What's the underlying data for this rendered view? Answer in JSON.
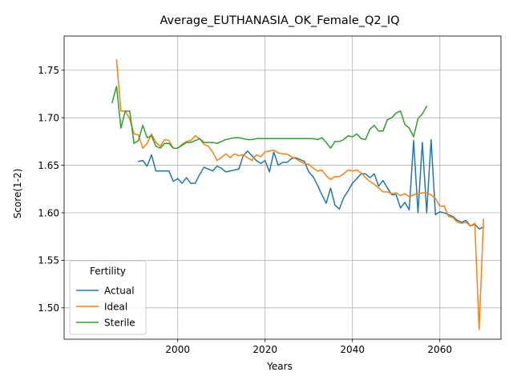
{
  "chart_data": {
    "type": "line",
    "title": "Average_EUTHANASIA_OK_Female_Q2_IQ",
    "xlabel": "Years",
    "ylabel": "Score(1-2)",
    "xlim": [
      2074,
      2174
    ],
    "ylim": [
      1.467,
      1.786
    ],
    "x_axis_unit": "years",
    "x_ticks": [
      2000,
      2020,
      2040,
      2060
    ],
    "y_ticks": [
      1.5,
      1.55,
      1.6,
      1.65,
      1.7,
      1.75
    ],
    "x_tick_labels": [
      "2000",
      "2020",
      "2040",
      "2060"
    ],
    "y_tick_labels": [
      "1.50",
      "1.55",
      "1.60",
      "1.65",
      "1.70",
      "1.75"
    ],
    "grid": true,
    "legend": {
      "title": "Fertility",
      "placement": "lower-left"
    },
    "series": [
      {
        "name": "Actual",
        "color": "#1f77b4",
        "x": [
          1991,
          1992,
          1993,
          1994,
          1995,
          1996,
          1997,
          1998,
          1999,
          2000,
          2001,
          2002,
          2003,
          2004,
          2005,
          2006,
          2007,
          2008,
          2009,
          2010,
          2011,
          2012,
          2013,
          2014,
          2015,
          2016,
          2017,
          2018,
          2019,
          2020,
          2021,
          2022,
          2023,
          2024,
          2025,
          2026,
          2027,
          2028,
          2029,
          2030,
          2031,
          2032,
          2033,
          2034,
          2035,
          2036,
          2037,
          2038,
          2039,
          2040,
          2041,
          2042,
          2043,
          2044,
          2045,
          2046,
          2047,
          2048,
          2049,
          2050,
          2051,
          2052,
          2053,
          2054,
          2055,
          2056,
          2057,
          2058,
          2059,
          2060,
          2061,
          2062,
          2063,
          2064,
          2065,
          2066,
          2067,
          2068,
          2069,
          2070
        ],
        "y": [
          1.654,
          1.655,
          1.649,
          1.661,
          1.644,
          1.644,
          1.644,
          1.644,
          1.633,
          1.636,
          1.631,
          1.637,
          1.631,
          1.631,
          1.64,
          1.648,
          1.646,
          1.644,
          1.649,
          1.647,
          1.643,
          1.644,
          1.645,
          1.646,
          1.66,
          1.665,
          1.66,
          1.655,
          1.652,
          1.655,
          1.643,
          1.664,
          1.65,
          1.653,
          1.653,
          1.657,
          1.658,
          1.656,
          1.654,
          1.643,
          1.638,
          1.629,
          1.619,
          1.61,
          1.626,
          1.608,
          1.604,
          1.616,
          1.623,
          1.631,
          1.636,
          1.641,
          1.641,
          1.637,
          1.641,
          1.628,
          1.634,
          1.626,
          1.619,
          1.619,
          1.605,
          1.611,
          1.603,
          1.676,
          1.6,
          1.674,
          1.6,
          1.677,
          1.598,
          1.601,
          1.6,
          1.598,
          1.596,
          1.592,
          1.59,
          1.592,
          1.586,
          1.588,
          1.583,
          1.585
        ]
      },
      {
        "name": "Ideal",
        "color": "#ff7f0e",
        "x": [
          1986,
          1987,
          1988,
          1989,
          1990,
          1991,
          1992,
          1993,
          1994,
          1995,
          1996,
          1997,
          1998,
          1999,
          2000,
          2001,
          2002,
          2003,
          2004,
          2005,
          2006,
          2007,
          2008,
          2009,
          2010,
          2011,
          2012,
          2013,
          2014,
          2015,
          2016,
          2017,
          2018,
          2019,
          2020,
          2021,
          2022,
          2023,
          2024,
          2025,
          2026,
          2027,
          2028,
          2029,
          2030,
          2031,
          2032,
          2033,
          2034,
          2035,
          2036,
          2037,
          2038,
          2039,
          2040,
          2041,
          2042,
          2043,
          2044,
          2045,
          2046,
          2047,
          2048,
          2049,
          2050,
          2051,
          2052,
          2053,
          2054,
          2055,
          2056,
          2057,
          2058,
          2059,
          2060,
          2061,
          2062,
          2063,
          2064,
          2065,
          2066,
          2067,
          2068,
          2069,
          2070
        ],
        "y": [
          1.761,
          1.707,
          1.707,
          1.699,
          1.683,
          1.682,
          1.668,
          1.673,
          1.683,
          1.674,
          1.67,
          1.677,
          1.676,
          1.668,
          1.668,
          1.672,
          1.675,
          1.676,
          1.681,
          1.678,
          1.672,
          1.67,
          1.664,
          1.655,
          1.658,
          1.662,
          1.658,
          1.662,
          1.66,
          1.661,
          1.658,
          1.655,
          1.661,
          1.659,
          1.664,
          1.665,
          1.666,
          1.663,
          1.662,
          1.662,
          1.659,
          1.657,
          1.654,
          1.652,
          1.651,
          1.647,
          1.644,
          1.645,
          1.639,
          1.635,
          1.638,
          1.638,
          1.641,
          1.645,
          1.644,
          1.645,
          1.642,
          1.637,
          1.633,
          1.63,
          1.626,
          1.622,
          1.622,
          1.62,
          1.621,
          1.618,
          1.62,
          1.617,
          1.619,
          1.62,
          1.621,
          1.621,
          1.619,
          1.615,
          1.607,
          1.607,
          1.596,
          1.595,
          1.59,
          1.589,
          1.59,
          1.586,
          1.589,
          1.477,
          1.593
        ]
      },
      {
        "name": "Sterile",
        "color": "#2ca02c",
        "x": [
          1985,
          1986,
          1987,
          1988,
          1989,
          1990,
          1991,
          1992,
          1993,
          1994,
          1995,
          1996,
          1997,
          1998,
          1999,
          2000,
          2001,
          2002,
          2003,
          2004,
          2005,
          2006,
          2007,
          2008,
          2009,
          2010,
          2011,
          2012,
          2013,
          2014,
          2015,
          2016,
          2017,
          2018,
          2019,
          2020,
          2021,
          2022,
          2023,
          2024,
          2025,
          2026,
          2027,
          2028,
          2029,
          2030,
          2031,
          2032,
          2033,
          2034,
          2035,
          2036,
          2037,
          2038,
          2039,
          2040,
          2041,
          2042,
          2043,
          2044,
          2045,
          2046,
          2047,
          2048,
          2049,
          2050,
          2051,
          2052,
          2053,
          2054,
          2055,
          2056,
          2057
        ],
        "y": [
          1.716,
          1.733,
          1.689,
          1.707,
          1.707,
          1.673,
          1.676,
          1.692,
          1.679,
          1.681,
          1.67,
          1.668,
          1.673,
          1.673,
          1.668,
          1.668,
          1.671,
          1.674,
          1.674,
          1.676,
          1.678,
          1.674,
          1.674,
          1.674,
          1.673,
          1.675,
          1.677,
          1.678,
          1.679,
          1.679,
          1.678,
          1.677,
          1.677,
          1.678,
          1.678,
          1.678,
          1.678,
          1.678,
          1.678,
          1.678,
          1.678,
          1.678,
          1.678,
          1.678,
          1.678,
          1.678,
          1.678,
          1.677,
          1.679,
          1.674,
          1.668,
          1.675,
          1.675,
          1.677,
          1.681,
          1.68,
          1.683,
          1.678,
          1.677,
          1.688,
          1.692,
          1.686,
          1.686,
          1.698,
          1.7,
          1.705,
          1.707,
          1.693,
          1.689,
          1.68,
          1.699,
          1.704,
          1.712
        ]
      }
    ]
  }
}
